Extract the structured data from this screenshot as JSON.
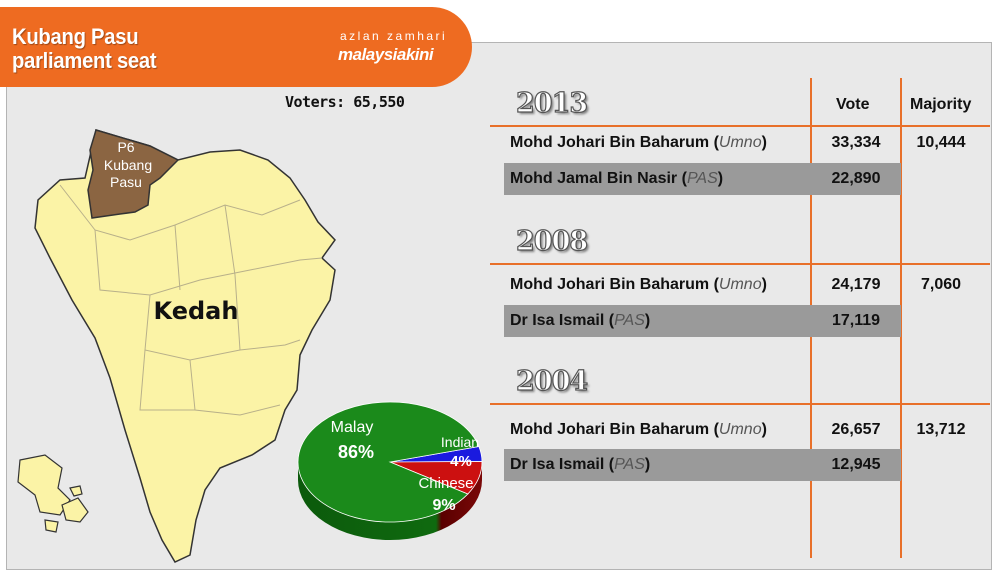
{
  "banner": {
    "title_line1": "Kubang Pasu",
    "title_line2": "parliament seat",
    "byline": "azlan zamhari",
    "brand": "malaysiakini"
  },
  "voters_label": "Voters: 65,550",
  "map": {
    "state_label": "Kedah",
    "seat_code": "P6",
    "seat_line1": "Kubang",
    "seat_line2": "Pasu",
    "state_color": "#fbf3a6",
    "seat_color": "#8b6542"
  },
  "table": {
    "vote_header": "Vote",
    "majority_header": "Majority",
    "elections": [
      {
        "year": "2013",
        "winner": {
          "name": "Mohd Johari Bin Baharum",
          "party": "Umno",
          "votes": "33,334"
        },
        "loser": {
          "name": "Mohd Jamal Bin Nasir",
          "party": "PAS",
          "votes": "22,890"
        },
        "majority": "10,444"
      },
      {
        "year": "2008",
        "winner": {
          "name": "Mohd Johari Bin Baharum",
          "party": "Umno",
          "votes": "24,179"
        },
        "loser": {
          "name": "Dr Isa Ismail",
          "party": "PAS",
          "votes": "17,119"
        },
        "majority": "7,060"
      },
      {
        "year": "2004",
        "winner": {
          "name": "Mohd Johari Bin Baharum",
          "party": "Umno",
          "votes": "26,657"
        },
        "loser": {
          "name": "Dr Isa Ismail",
          "party": "PAS",
          "votes": "12,945"
        },
        "majority": "13,712"
      }
    ]
  },
  "chart_data": {
    "type": "pie",
    "categories": [
      "Malay",
      "Indian",
      "Chinese"
    ],
    "values": [
      86,
      4,
      9
    ],
    "labels": [
      "86%",
      "4%",
      "9%"
    ],
    "colors": [
      "#1b8a1b",
      "#1a1adf",
      "#cc1010"
    ]
  }
}
